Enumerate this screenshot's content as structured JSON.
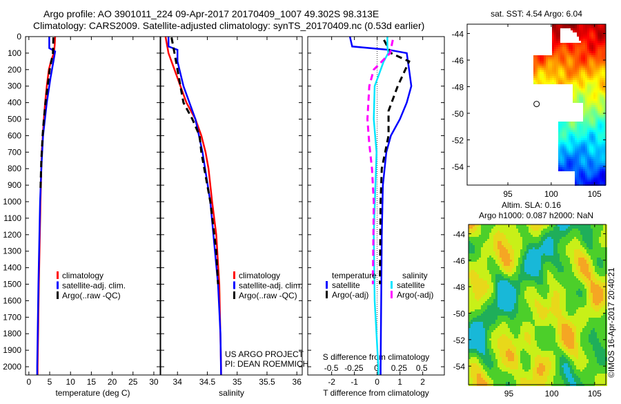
{
  "header": {
    "line1": "Argo profile: AO 3901011_224 09-Apr-2017 20170409_1007 49.302S 98.313E",
    "line2": "Climatology: CARS2009. Satellite-adjusted climatology: synTS_20170409.nc (0.53d earlier)"
  },
  "chart_data": [
    {
      "type": "line",
      "name": "temperature-profile",
      "xlabel": "temperature (deg C)",
      "ylabel": "depth",
      "xlim": [
        -0.8,
        31.5
      ],
      "ylim": [
        2050,
        0
      ],
      "xticks": [
        0,
        5,
        10,
        15,
        20,
        25,
        30
      ],
      "yticks": [
        0,
        100,
        200,
        300,
        400,
        500,
        600,
        700,
        800,
        900,
        1000,
        1100,
        1200,
        1300,
        1400,
        1500,
        1600,
        1700,
        1800,
        1900,
        2000
      ],
      "legend": [
        "climatology",
        "satellite-adj. clim.",
        "Argo(..raw -QC)"
      ],
      "legend_placement": "lower-center",
      "series": [
        {
          "name": "climatology",
          "color": "#ff0000",
          "style": "solid",
          "depth": [
            0,
            50,
            100,
            150,
            200,
            300,
            400,
            500,
            700,
            1000,
            1500,
            2000,
            2050
          ],
          "values": [
            6.3,
            6.2,
            6.0,
            5.3,
            4.8,
            4.3,
            3.9,
            3.6,
            3.1,
            2.8,
            2.4,
            2.1,
            2.1
          ]
        },
        {
          "name": "satellite-adj. clim.",
          "color": "#0000ff",
          "style": "solid",
          "depth": [
            0,
            70,
            90,
            150,
            250,
            400,
            600,
            800,
            1000,
            1500,
            2000,
            2050
          ],
          "values": [
            4.9,
            4.9,
            6.3,
            5.9,
            5.2,
            4.3,
            3.4,
            3.0,
            2.7,
            2.3,
            2.0,
            2.0
          ]
        },
        {
          "name": "Argo(..raw -QC)",
          "color": "#000000",
          "style": "dashed",
          "depth": [
            5,
            100,
            200,
            300,
            400,
            500,
            600,
            750,
            930
          ],
          "values": [
            5.9,
            5.8,
            5.0,
            4.5,
            4.0,
            3.6,
            3.3,
            3.0,
            2.8
          ]
        }
      ]
    },
    {
      "type": "line",
      "name": "salinity-profile",
      "xlabel": "salinity",
      "xlim": [
        33.72,
        36.09
      ],
      "ylim": [
        2050,
        0
      ],
      "xticks": [
        34,
        34.5,
        35,
        35.5,
        36
      ],
      "xtick_labels": [
        "34",
        "34.5",
        "35",
        "35.5",
        "36"
      ],
      "legend": [
        "climatology",
        "satellite-adj. clim.",
        "Argo(..raw -QC)"
      ],
      "annotations": [
        "US ARGO PROJECT",
        "PI: DEAN ROEMMICH"
      ],
      "series": [
        {
          "name": "climatology",
          "color": "#ff0000",
          "style": "solid",
          "depth": [
            0,
            100,
            200,
            300,
            400,
            500,
            600,
            700,
            800,
            1000,
            1200,
            1500,
            2000,
            2050
          ],
          "values": [
            33.8,
            33.85,
            33.95,
            34.05,
            34.15,
            34.3,
            34.4,
            34.47,
            34.52,
            34.58,
            34.65,
            34.7,
            34.73,
            34.73
          ]
        },
        {
          "name": "satellite-adj. clim.",
          "color": "#0000ff",
          "style": "solid",
          "depth": [
            0,
            60,
            80,
            150,
            300,
            500,
            700,
            1000,
            1500,
            1800,
            2050
          ],
          "values": [
            33.85,
            33.85,
            34.0,
            34.0,
            34.1,
            34.3,
            34.42,
            34.55,
            34.68,
            34.72,
            34.73
          ]
        },
        {
          "name": "Argo(..raw -QC)",
          "color": "#000000",
          "style": "dashed",
          "depth": [
            5,
            100,
            200,
            300,
            400,
            500,
            600,
            700,
            800,
            1000,
            1300,
            1500
          ],
          "values": [
            33.9,
            33.95,
            34.0,
            34.05,
            34.1,
            34.25,
            34.37,
            34.4,
            34.45,
            34.55,
            34.65,
            34.68
          ]
        }
      ]
    },
    {
      "type": "line",
      "name": "difference-profile",
      "xlabel": "T difference from climatology",
      "xlabel2": "S difference from climatology",
      "xlim": [
        -3.05,
        2.95
      ],
      "x2lim": [
        -0.76,
        0.75
      ],
      "ylim": [
        2050,
        0
      ],
      "xticks": [
        -2,
        -1,
        0,
        1,
        2
      ],
      "x2ticks": [
        -0.5,
        -0.25,
        0,
        0.25,
        0.5
      ],
      "x2tick_labels": [
        "-0.5",
        "-0.25",
        "0",
        "0.25",
        "0.5"
      ],
      "legend_headers": [
        "temperature",
        "salinity"
      ],
      "legend": [
        "satellite",
        "Argo(-adj)",
        "satellite",
        "Argo(-adj)"
      ],
      "series": [
        {
          "name": "T satellite",
          "axis": "T",
          "color": "#0000ff",
          "style": "solid",
          "depth": [
            0,
            60,
            80,
            100,
            200,
            300,
            400,
            500,
            600,
            700,
            900,
            1200,
            2000,
            2050
          ],
          "values": [
            -1.2,
            -1.1,
            0.5,
            1.3,
            1.4,
            1.5,
            1.3,
            1.0,
            0.6,
            0.4,
            0.25,
            0.2,
            0.15,
            0.15
          ]
        },
        {
          "name": "T Argo(-adj)",
          "axis": "T",
          "color": "#000000",
          "style": "dashed",
          "depth": [
            20,
            100,
            150,
            300,
            450,
            600,
            800,
            1000,
            1500
          ],
          "values": [
            0.3,
            0.6,
            1.4,
            0.9,
            0.5,
            0.5,
            0.2,
            0.15,
            0.12
          ]
        },
        {
          "name": "S satellite",
          "axis": "S",
          "color": "#00e5ff",
          "style": "solid",
          "depth": [
            0,
            60,
            100,
            150,
            300,
            500,
            700,
            1200,
            1600,
            2000,
            2050
          ],
          "values": [
            0.12,
            0.12,
            0.13,
            0.08,
            -0.02,
            -0.03,
            0.0,
            -0.03,
            -0.02,
            0.02,
            0.02
          ]
        },
        {
          "name": "S Argo(-adj)",
          "axis": "S",
          "color": "#ff00ff",
          "style": "dashed",
          "depth": [
            20,
            100,
            200,
            300,
            500,
            650,
            800,
            1000,
            1500
          ],
          "values": [
            0.18,
            0.15,
            -0.03,
            -0.08,
            -0.1,
            -0.08,
            -0.05,
            -0.03,
            -0.04
          ]
        }
      ]
    },
    {
      "type": "heatmap",
      "name": "sst-map",
      "title": "sat. SST: 4.54 Argo: 6.04",
      "xlim": [
        90.3,
        106.3
      ],
      "ylim": [
        -55.4,
        -43.3
      ],
      "xticks": [
        95,
        100,
        105
      ],
      "yticks": [
        -44,
        -46,
        -48,
        -50,
        -52,
        -54
      ],
      "marker": {
        "lon": 98.313,
        "lat": -49.302
      }
    },
    {
      "type": "heatmap",
      "name": "sla-map",
      "title": "Altim. SLA: 0.16",
      "subtitle": "Argo h1000: 0.087 h2000: NaN",
      "xlim": [
        90.3,
        106.3
      ],
      "ylim": [
        -55.4,
        -43.3
      ],
      "xticks": [
        95,
        100,
        105
      ],
      "yticks": [
        -44,
        -46,
        -48,
        -50,
        -52,
        -54
      ]
    }
  ],
  "footer": {
    "credit": "©IMOS 16-Apr-2017 20:40:21"
  }
}
